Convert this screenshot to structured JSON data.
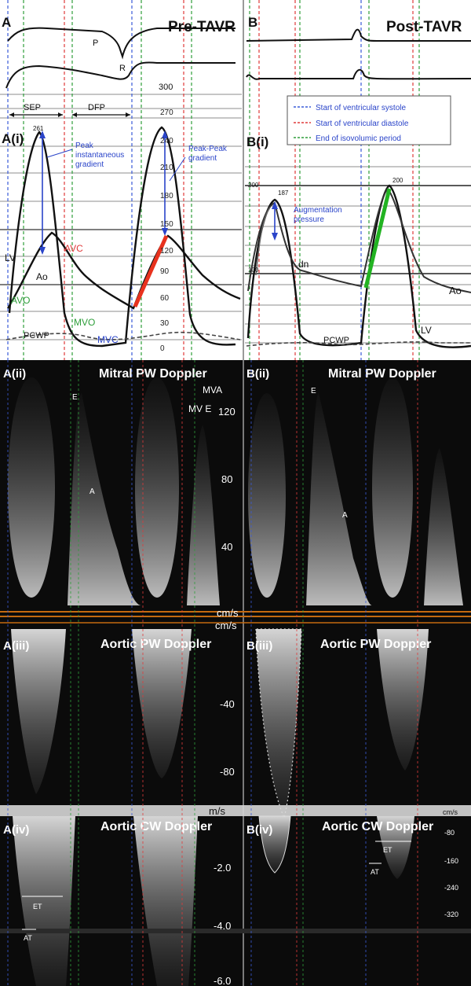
{
  "top": {
    "pre_title": "Pre-TAVR",
    "post_title": "Post-TAVR",
    "label_a": "A",
    "label_b": "B",
    "ecg_p": "P",
    "ecg_r": "R",
    "scale_300": "300",
    "sep": "SEP",
    "dfp": "DFP"
  },
  "legend": {
    "items": [
      {
        "text": "Start of ventricular systole",
        "color": "#3a5bd9"
      },
      {
        "text": "Start of ventricular diastole",
        "color": "#e03a3a"
      },
      {
        "text": "End of isovolumic period",
        "color": "#2e9e3a"
      }
    ]
  },
  "a_i": {
    "label": "A(i)",
    "peak_value": "261",
    "peak_label": "Peak instantaneous gradient",
    "peak_peak_label": "Peak-Peak gradient",
    "avc": "AVC",
    "avo": "AVO",
    "mvo": "MVO",
    "mvc": "MVC",
    "lv": "LV",
    "ao": "Ao",
    "pcwp": "PCWP",
    "scale": [
      "270",
      "240",
      "210",
      "180",
      "150",
      "120",
      "90",
      "60",
      "30",
      "0"
    ]
  },
  "b_i": {
    "label": "B(i)",
    "augmentation": "Augmentation pressure",
    "dn": "dn",
    "ao": "Ao",
    "lv": "LV",
    "pcwp": "PCWP",
    "scale_200": "200",
    "scale_100": "100",
    "peak_left": "187",
    "peak_right": "200"
  },
  "a_ii": {
    "label": "A(ii)",
    "title": "Mitral PW Doppler",
    "e": "E",
    "a": "A",
    "mva": "MVA",
    "mve": "MV E",
    "scale": [
      "120",
      "80",
      "40"
    ],
    "unit": "cm/s"
  },
  "b_ii": {
    "label": "B(ii)",
    "title": "Mitral PW Doppler",
    "e": "E",
    "a": "A"
  },
  "a_iii": {
    "label": "A(iii)",
    "title": "Aortic PW Doppler",
    "unit": "cm/s",
    "scale": [
      "-40",
      "-80"
    ]
  },
  "b_iii": {
    "label": "B(iii)",
    "title": "Aortic PW Doppler"
  },
  "a_iv": {
    "label": "A(iv)",
    "title": "Aortic CW Doppler",
    "unit": "m/s",
    "scale": [
      "-2.0",
      "-4.0",
      "-6.0"
    ],
    "et": "ET",
    "at": "AT"
  },
  "b_iv": {
    "label": "B(iv)",
    "title": "Aortic CW Doppler",
    "unit": "cm/s",
    "scale": [
      "-80",
      "-160",
      "-240",
      "-320"
    ],
    "et": "ET",
    "at": "AT"
  }
}
